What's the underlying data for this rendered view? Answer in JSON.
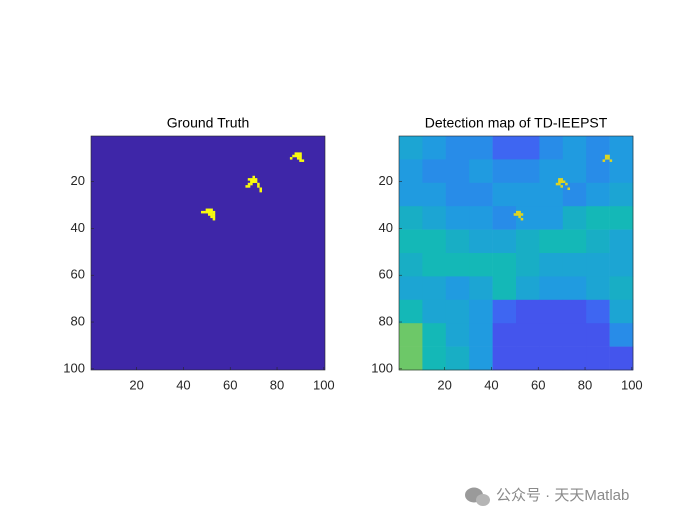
{
  "chart_data": [
    {
      "type": "binary-image",
      "title": "Ground Truth",
      "xlim": [
        0.5,
        100.5
      ],
      "ylim": [
        0.5,
        100.5
      ],
      "xticks": [
        20,
        40,
        60,
        80,
        100
      ],
      "yticks": [
        20,
        40,
        60,
        80,
        100
      ],
      "clim": [
        0,
        1
      ],
      "colormap": [
        "#3e26a8",
        "#455af5",
        "#2198e5",
        "#14b8b7",
        "#55cb77",
        "#cebb2d",
        "#f9fb0e"
      ],
      "background": 0,
      "pixel_value": 1,
      "pixels": [
        [
          88,
          8
        ],
        [
          89,
          8
        ],
        [
          90,
          8
        ],
        [
          87,
          9
        ],
        [
          88,
          9
        ],
        [
          89,
          9
        ],
        [
          90,
          9
        ],
        [
          89,
          10
        ],
        [
          90,
          10
        ],
        [
          90,
          11
        ],
        [
          91,
          11
        ],
        [
          86,
          10
        ],
        [
          70,
          18
        ],
        [
          68,
          19
        ],
        [
          69,
          19
        ],
        [
          70,
          19
        ],
        [
          71,
          19
        ],
        [
          69,
          20
        ],
        [
          70,
          20
        ],
        [
          71,
          20
        ],
        [
          68,
          21
        ],
        [
          69,
          21
        ],
        [
          72,
          21
        ],
        [
          67,
          22
        ],
        [
          68,
          22
        ],
        [
          72,
          22
        ],
        [
          73,
          23
        ],
        [
          73,
          24
        ],
        [
          50,
          32
        ],
        [
          51,
          32
        ],
        [
          52,
          32
        ],
        [
          48,
          33
        ],
        [
          49,
          33
        ],
        [
          50,
          33
        ],
        [
          51,
          33
        ],
        [
          52,
          33
        ],
        [
          53,
          33
        ],
        [
          51,
          34
        ],
        [
          52,
          34
        ],
        [
          53,
          34
        ],
        [
          52,
          35
        ],
        [
          53,
          35
        ],
        [
          53,
          36
        ]
      ]
    },
    {
      "type": "heat-image",
      "title": "Detection map of TD-IEEPST",
      "xlim": [
        0.5,
        100.5
      ],
      "ylim": [
        0.5,
        100.5
      ],
      "xticks": [
        20,
        40,
        60,
        80,
        100
      ],
      "yticks": [
        20,
        40,
        60,
        80,
        100
      ],
      "clim": [
        0,
        1
      ],
      "colormap": [
        "#3e26a8",
        "#455af5",
        "#2198e5",
        "#14b8b7",
        "#55cb77",
        "#cebb2d",
        "#f9fb0e"
      ],
      "grid": [
        [
          0.4,
          0.35,
          0.3,
          0.3,
          0.2,
          0.2,
          0.3,
          0.35,
          0.3,
          0.35
        ],
        [
          0.35,
          0.3,
          0.3,
          0.35,
          0.3,
          0.3,
          0.35,
          0.35,
          0.3,
          0.35
        ],
        [
          0.35,
          0.35,
          0.3,
          0.3,
          0.35,
          0.35,
          0.35,
          0.3,
          0.35,
          0.4
        ],
        [
          0.45,
          0.4,
          0.35,
          0.35,
          0.3,
          0.35,
          0.35,
          0.45,
          0.5,
          0.5
        ],
        [
          0.5,
          0.5,
          0.45,
          0.4,
          0.4,
          0.45,
          0.5,
          0.5,
          0.45,
          0.4
        ],
        [
          0.45,
          0.5,
          0.5,
          0.5,
          0.5,
          0.45,
          0.4,
          0.4,
          0.4,
          0.4
        ],
        [
          0.4,
          0.4,
          0.35,
          0.4,
          0.5,
          0.4,
          0.35,
          0.35,
          0.4,
          0.45
        ],
        [
          0.5,
          0.4,
          0.4,
          0.35,
          0.2,
          0.15,
          0.15,
          0.15,
          0.2,
          0.4
        ],
        [
          0.7,
          0.5,
          0.4,
          0.35,
          0.15,
          0.15,
          0.15,
          0.15,
          0.15,
          0.3
        ],
        [
          0.7,
          0.5,
          0.45,
          0.35,
          0.15,
          0.15,
          0.15,
          0.15,
          0.15,
          0.15
        ]
      ],
      "pixel_value": 0.9,
      "pixels": [
        [
          89,
          9
        ],
        [
          90,
          9
        ],
        [
          89,
          10
        ],
        [
          90,
          10
        ],
        [
          88,
          11
        ],
        [
          91,
          11
        ],
        [
          69,
          19
        ],
        [
          70,
          19
        ],
        [
          69,
          20
        ],
        [
          70,
          20
        ],
        [
          71,
          20
        ],
        [
          68,
          21
        ],
        [
          69,
          21
        ],
        [
          72,
          21
        ],
        [
          70,
          22
        ],
        [
          73,
          23
        ],
        [
          51,
          33
        ],
        [
          52,
          33
        ],
        [
          50,
          34
        ],
        [
          51,
          34
        ],
        [
          52,
          34
        ],
        [
          53,
          34
        ],
        [
          52,
          35
        ],
        [
          53,
          36
        ]
      ]
    }
  ],
  "watermark": "公众号 · 天天Matlab"
}
